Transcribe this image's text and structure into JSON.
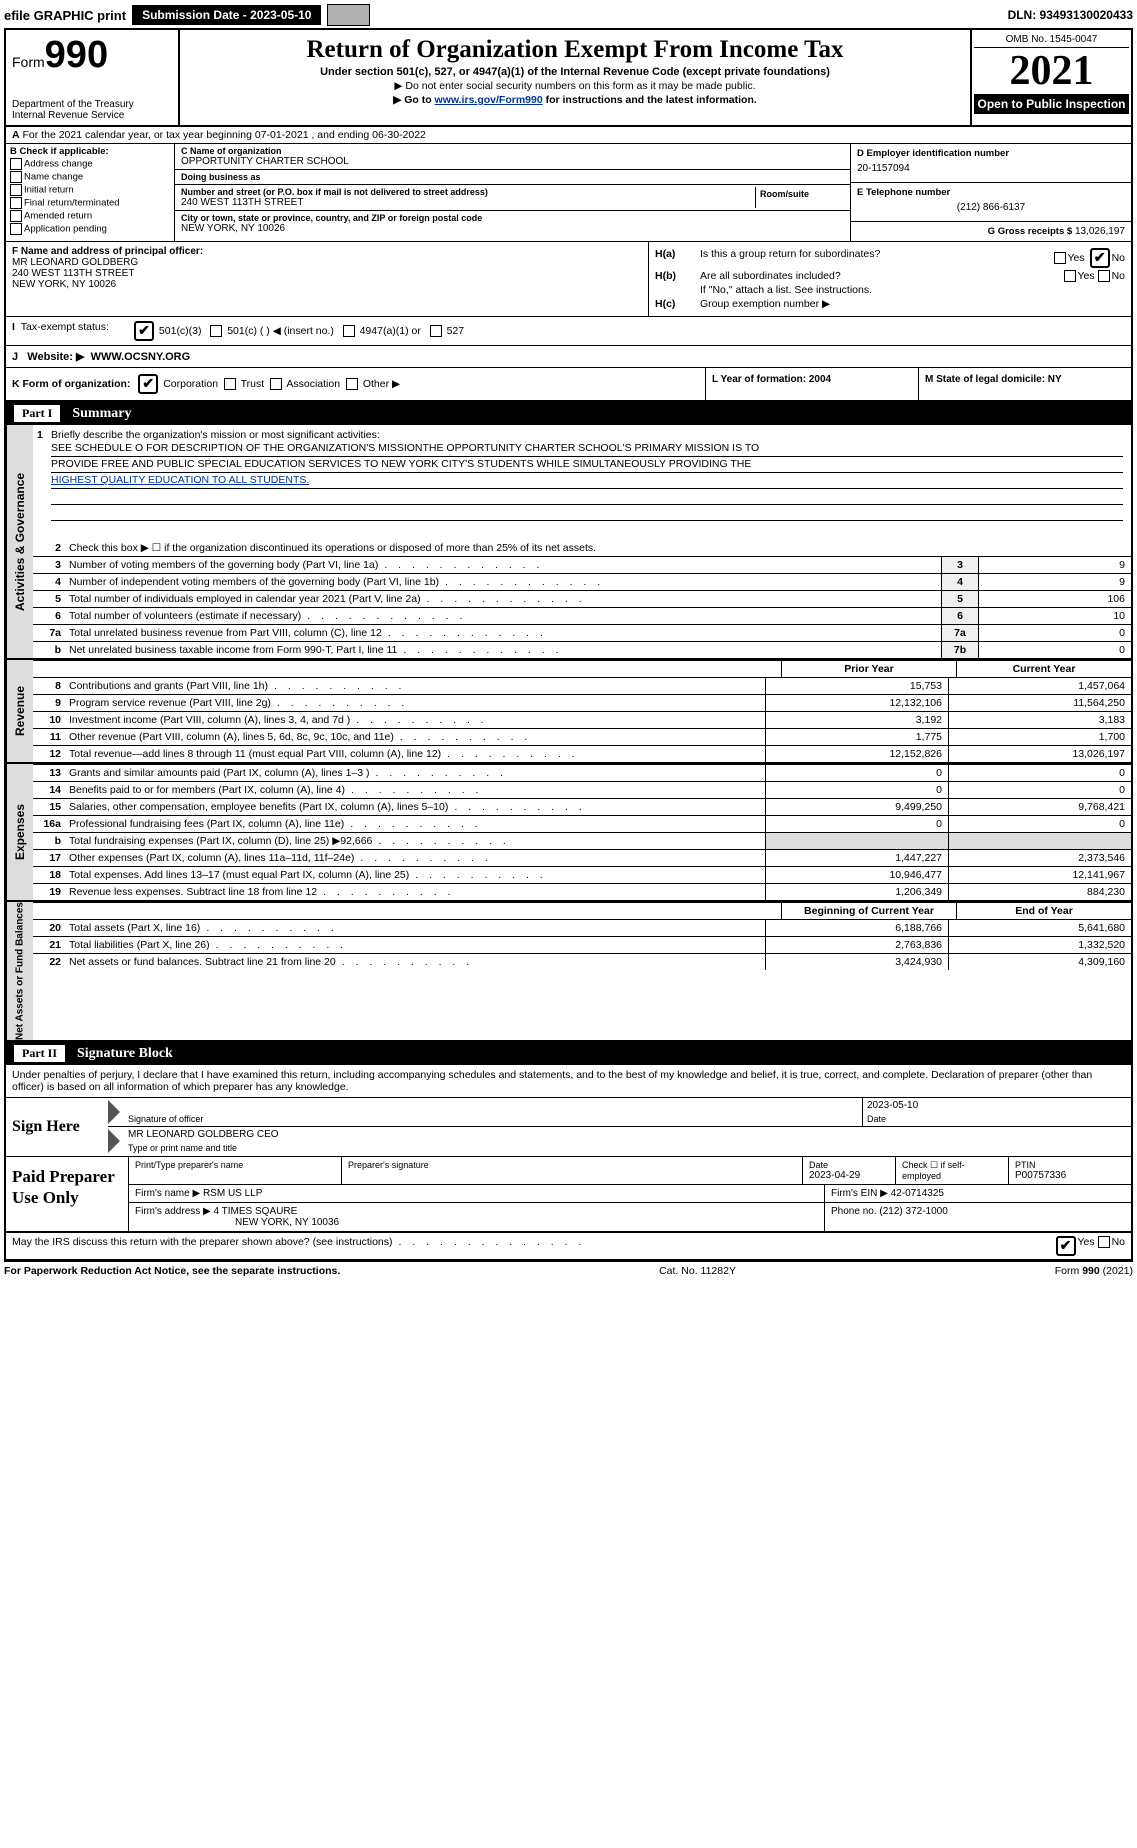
{
  "topbar": {
    "efile": "efile GRAPHIC print",
    "submission": "Submission Date - 2023-05-10",
    "dln": "DLN: 93493130020433"
  },
  "header": {
    "form_prefix": "Form",
    "form_number": "990",
    "dept1": "Department of the Treasury",
    "dept2": "Internal Revenue Service",
    "title": "Return of Organization Exempt From Income Tax",
    "subtitle": "Under section 501(c), 527, or 4947(a)(1) of the Internal Revenue Code (except private foundations)",
    "note1": "▶ Do not enter social security numbers on this form as it may be made public.",
    "note2_pre": "▶ Go to ",
    "note2_link": "www.irs.gov/Form990",
    "note2_post": " for instructions and the latest information.",
    "omb": "OMB No. 1545-0047",
    "year": "2021",
    "open": "Open to Public Inspection"
  },
  "rowA": {
    "text": "For the 2021 calendar year, or tax year beginning 07-01-2021    , and ending 06-30-2022",
    "prefix": "A"
  },
  "colB": {
    "heading": "B Check if applicable:",
    "opts": [
      "Address change",
      "Name change",
      "Initial return",
      "Final return/terminated",
      "Amended return",
      "Application pending"
    ]
  },
  "colC": {
    "name_label": "C Name of organization",
    "name": "OPPORTUNITY CHARTER SCHOOL",
    "dba_label": "Doing business as",
    "dba": "",
    "addr_label": "Number and street (or P.O. box if mail is not delivered to street address)",
    "addr": "240 WEST 113TH STREET",
    "room_label": "Room/suite",
    "city_label": "City or town, state or province, country, and ZIP or foreign postal code",
    "city": "NEW YORK, NY  10026"
  },
  "colD": {
    "ein_label": "D Employer identification number",
    "ein": "20-1157094",
    "phone_label": "E Telephone number",
    "phone": "(212) 866-6137",
    "gross_label": "G Gross receipts $",
    "gross": "13,026,197"
  },
  "colF": {
    "label": "F Name and address of principal officer:",
    "line1": "MR LEONARD GOLDBERG",
    "line2": "240 WEST 113TH STREET",
    "line3": "NEW YORK, NY  10026"
  },
  "colH": {
    "a_label": "H(a)",
    "a_text": "Is this a group return for subordinates?",
    "b_label": "H(b)",
    "b_text": "Are all subordinates included?",
    "b_note": "If \"No,\" attach a list. See instructions.",
    "c_label": "H(c)",
    "c_text": "Group exemption number ▶",
    "yes": "Yes",
    "no": "No"
  },
  "taxStatus": {
    "label": "Tax-exempt status:",
    "opt1": "501(c)(3)",
    "opt2": "501(c) (  ) ◀ (insert no.)",
    "opt3": "4947(a)(1) or",
    "opt4": "527",
    "i_label": "I"
  },
  "website": {
    "label": "J",
    "text": "Website: ▶",
    "val": "WWW.OCSNY.ORG"
  },
  "rowK": {
    "k": "K Form of organization:",
    "corp": "Corporation",
    "trust": "Trust",
    "assoc": "Association",
    "other": "Other ▶",
    "l": "L Year of formation: 2004",
    "m": "M State of legal domicile: NY"
  },
  "part1": {
    "num": "Part I",
    "title": "Summary"
  },
  "mission": {
    "num": "1",
    "label": "Briefly describe the organization's mission or most significant activities:",
    "line1": "SEE SCHEDULE O FOR DESCRIPTION OF THE ORGANIZATION'S MISSIONTHE OPPORTUNITY CHARTER SCHOOL'S PRIMARY MISSION IS TO",
    "line2": "PROVIDE FREE AND PUBLIC SPECIAL EDUCATION SERVICES TO NEW YORK CITY'S STUDENTS WHILE SIMULTANEOUSLY PROVIDING THE",
    "line3": "HIGHEST QUALITY EDUCATION TO ALL STUDENTS."
  },
  "governance": {
    "label": "Activities & Governance",
    "line2": "Check this box ▶ ☐ if the organization discontinued its operations or disposed of more than 25% of its net assets.",
    "rows": [
      {
        "n": "3",
        "d": "Number of voting members of the governing body (Part VI, line 1a)",
        "box": "3",
        "v": "9"
      },
      {
        "n": "4",
        "d": "Number of independent voting members of the governing body (Part VI, line 1b)",
        "box": "4",
        "v": "9"
      },
      {
        "n": "5",
        "d": "Total number of individuals employed in calendar year 2021 (Part V, line 2a)",
        "box": "5",
        "v": "106"
      },
      {
        "n": "6",
        "d": "Total number of volunteers (estimate if necessary)",
        "box": "6",
        "v": "10"
      },
      {
        "n": "7a",
        "d": "Total unrelated business revenue from Part VIII, column (C), line 12",
        "box": "7a",
        "v": "0"
      },
      {
        "n": "b",
        "d": "Net unrelated business taxable income from Form 990-T, Part I, line 11",
        "box": "7b",
        "v": "0"
      }
    ]
  },
  "revenue": {
    "label": "Revenue",
    "header_prior": "Prior Year",
    "header_curr": "Current Year",
    "rows": [
      {
        "n": "8",
        "d": "Contributions and grants (Part VIII, line 1h)",
        "p": "15,753",
        "c": "1,457,064"
      },
      {
        "n": "9",
        "d": "Program service revenue (Part VIII, line 2g)",
        "p": "12,132,106",
        "c": "11,564,250"
      },
      {
        "n": "10",
        "d": "Investment income (Part VIII, column (A), lines 3, 4, and 7d )",
        "p": "3,192",
        "c": "3,183"
      },
      {
        "n": "11",
        "d": "Other revenue (Part VIII, column (A), lines 5, 6d, 8c, 9c, 10c, and 11e)",
        "p": "1,775",
        "c": "1,700"
      },
      {
        "n": "12",
        "d": "Total revenue—add lines 8 through 11 (must equal Part VIII, column (A), line 12)",
        "p": "12,152,826",
        "c": "13,026,197"
      }
    ]
  },
  "expenses": {
    "label": "Expenses",
    "rows": [
      {
        "n": "13",
        "d": "Grants and similar amounts paid (Part IX, column (A), lines 1–3 )",
        "p": "0",
        "c": "0"
      },
      {
        "n": "14",
        "d": "Benefits paid to or for members (Part IX, column (A), line 4)",
        "p": "0",
        "c": "0"
      },
      {
        "n": "15",
        "d": "Salaries, other compensation, employee benefits (Part IX, column (A), lines 5–10)",
        "p": "9,499,250",
        "c": "9,768,421"
      },
      {
        "n": "16a",
        "d": "Professional fundraising fees (Part IX, column (A), line 11e)",
        "p": "0",
        "c": "0"
      },
      {
        "n": "b",
        "d": "Total fundraising expenses (Part IX, column (D), line 25) ▶92,666",
        "p": "gray",
        "c": "gray"
      },
      {
        "n": "17",
        "d": "Other expenses (Part IX, column (A), lines 11a–11d, 11f–24e)",
        "p": "1,447,227",
        "c": "2,373,546"
      },
      {
        "n": "18",
        "d": "Total expenses. Add lines 13–17 (must equal Part IX, column (A), line 25)",
        "p": "10,946,477",
        "c": "12,141,967"
      },
      {
        "n": "19",
        "d": "Revenue less expenses. Subtract line 18 from line 12",
        "p": "1,206,349",
        "c": "884,230"
      }
    ]
  },
  "netassets": {
    "label": "Net Assets or Fund Balances",
    "header_prior": "Beginning of Current Year",
    "header_curr": "End of Year",
    "rows": [
      {
        "n": "20",
        "d": "Total assets (Part X, line 16)",
        "p": "6,188,766",
        "c": "5,641,680"
      },
      {
        "n": "21",
        "d": "Total liabilities (Part X, line 26)",
        "p": "2,763,836",
        "c": "1,332,520"
      },
      {
        "n": "22",
        "d": "Net assets or fund balances. Subtract line 21 from line 20",
        "p": "3,424,930",
        "c": "4,309,160"
      }
    ]
  },
  "part2": {
    "num": "Part II",
    "title": "Signature Block"
  },
  "sigIntro": "Under penalties of perjury, I declare that I have examined this return, including accompanying schedules and statements, and to the best of my knowledge and belief, it is true, correct, and complete. Declaration of preparer (other than officer) is based on all information of which preparer has any knowledge.",
  "sign": {
    "left": "Sign Here",
    "sig_label": "Signature of officer",
    "date_label": "Date",
    "date": "2023-05-10",
    "name": "MR LEONARD GOLDBERG  CEO",
    "name_label": "Type or print name and title"
  },
  "paid": {
    "left": "Paid Preparer Use Only",
    "h1": "Print/Type preparer's name",
    "h2": "Preparer's signature",
    "h3": "Date",
    "date": "2023-04-29",
    "h4": "Check ☐ if self-employed",
    "h5": "PTIN",
    "ptin": "P00757336",
    "firm_label": "Firm's name    ▶",
    "firm": "RSM US LLP",
    "ein_label": "Firm's EIN ▶",
    "ein": "42-0714325",
    "addr_label": "Firm's address ▶",
    "addr1": "4 TIMES SQAURE",
    "addr2": "NEW YORK, NY  10036",
    "phone_label": "Phone no.",
    "phone": "(212) 372-1000"
  },
  "footer": {
    "discuss": "May the IRS discuss this return with the preparer shown above? (see instructions)",
    "yes": "Yes",
    "no": "No",
    "l": "For Paperwork Reduction Act Notice, see the separate instructions.",
    "m": "Cat. No. 11282Y",
    "r": "Form 990 (2021)"
  }
}
